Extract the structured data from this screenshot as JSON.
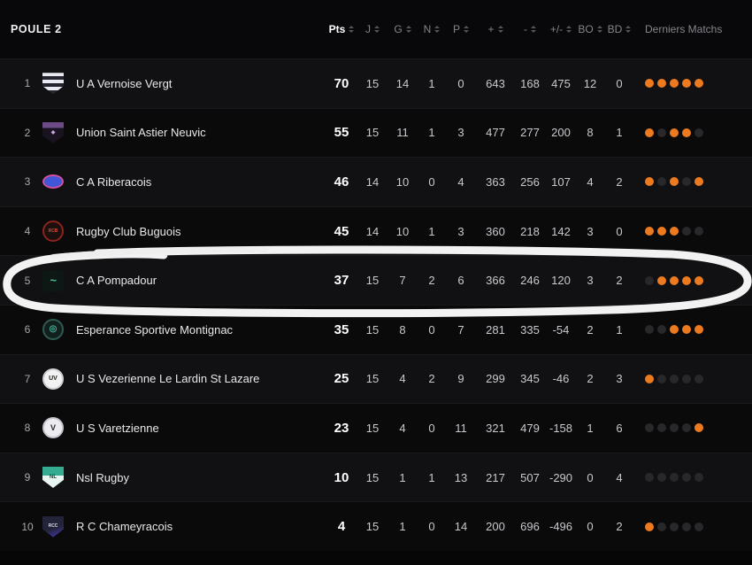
{
  "header": {
    "title": "POULE 2",
    "columns": [
      {
        "label": "Pts",
        "sortable": true,
        "emph": true
      },
      {
        "label": "J",
        "sortable": true
      },
      {
        "label": "G",
        "sortable": true
      },
      {
        "label": "N",
        "sortable": true
      },
      {
        "label": "P",
        "sortable": true
      },
      {
        "label": "+",
        "sortable": true
      },
      {
        "label": "-",
        "sortable": true
      },
      {
        "label": "+/-",
        "sortable": true
      },
      {
        "label": "BO",
        "sortable": true
      },
      {
        "label": "BD",
        "sortable": true
      },
      {
        "label": "Derniers Matchs",
        "sortable": false
      }
    ]
  },
  "colors": {
    "win_dot": "#ed7a1f",
    "empty_dot": "#28282b",
    "annotation": "#f2f2f2"
  },
  "annotation": {
    "type": "hand-drawn-circle",
    "highlighted_rank": "5",
    "highlighted_team": "C A Pompadour"
  },
  "standings": {
    "rows": [
      {
        "rank": "1",
        "team": "U A Vernoise Vergt",
        "pts": "70",
        "j": "15",
        "g": "14",
        "n": "1",
        "p": "0",
        "plus": "643",
        "minus": "168",
        "diff": "475",
        "bo": "12",
        "bd": "0",
        "last_matches": [
          1,
          1,
          1,
          1,
          1
        ],
        "logo": {
          "shape": "shield",
          "bg": "repeating-linear-gradient(180deg,#e9e9f1 0 4px,#24242e 4px 8px)",
          "label": "",
          "labelColor": "",
          "labelSize": 6
        }
      },
      {
        "rank": "2",
        "team": "Union Saint Astier Neuvic",
        "pts": "55",
        "j": "15",
        "g": "11",
        "n": "1",
        "p": "3",
        "plus": "477",
        "minus": "277",
        "diff": "200",
        "bo": "8",
        "bd": "1",
        "last_matches": [
          1,
          0,
          1,
          1,
          0
        ],
        "logo": {
          "shape": "shield",
          "bg": "linear-gradient(180deg,#6b4a85 0 28%,#19121f 28%)",
          "label": "◆",
          "labelColor": "#c9a6dd",
          "labelSize": 6
        }
      },
      {
        "rank": "3",
        "team": "C A Riberacois",
        "pts": "46",
        "j": "14",
        "g": "10",
        "n": "0",
        "p": "4",
        "plus": "363",
        "minus": "256",
        "diff": "107",
        "bo": "4",
        "bd": "2",
        "last_matches": [
          1,
          0,
          1,
          0,
          1
        ],
        "logo": {
          "shape": "ellipse",
          "bg": "#4157d8",
          "border": "#cf4f9e",
          "label": "",
          "labelColor": "",
          "labelSize": 6
        }
      },
      {
        "rank": "4",
        "team": "Rugby Club Buguois",
        "pts": "45",
        "j": "14",
        "g": "10",
        "n": "1",
        "p": "3",
        "plus": "360",
        "minus": "218",
        "diff": "142",
        "bo": "3",
        "bd": "0",
        "last_matches": [
          1,
          1,
          1,
          0,
          0
        ],
        "logo": {
          "shape": "circle",
          "bg": "#1c100e",
          "border": "#8d231c",
          "label": "RCB",
          "labelColor": "#d14a39",
          "labelSize": 5
        }
      },
      {
        "rank": "5",
        "team": "C A Pompadour",
        "pts": "37",
        "j": "15",
        "g": "7",
        "n": "2",
        "p": "6",
        "plus": "366",
        "minus": "246",
        "diff": "120",
        "bo": "3",
        "bd": "2",
        "last_matches": [
          0,
          1,
          1,
          1,
          1
        ],
        "logo": {
          "shape": "square",
          "bg": "#0d1713",
          "label": "~",
          "labelColor": "#45bfa1",
          "labelSize": 13,
          "italic": true
        }
      },
      {
        "rank": "6",
        "team": "Esperance Sportive Montignac",
        "pts": "35",
        "j": "15",
        "g": "8",
        "n": "0",
        "p": "7",
        "plus": "281",
        "minus": "335",
        "diff": "-54",
        "bo": "2",
        "bd": "1",
        "last_matches": [
          0,
          0,
          1,
          1,
          1
        ],
        "logo": {
          "shape": "circle",
          "bg": "#11201d",
          "border": "#2e5a52",
          "label": "◎",
          "labelColor": "#3fb3a0",
          "labelSize": 10
        }
      },
      {
        "rank": "7",
        "team": "U S Vezerienne Le Lardin St Lazare",
        "pts": "25",
        "j": "15",
        "g": "4",
        "n": "2",
        "p": "9",
        "plus": "299",
        "minus": "345",
        "diff": "-46",
        "bo": "2",
        "bd": "3",
        "last_matches": [
          1,
          0,
          0,
          0,
          0
        ],
        "logo": {
          "shape": "circle",
          "bg": "#f2f2f2",
          "border": "#cfcfd6",
          "label": "UV",
          "labelColor": "#1a1a1a",
          "labelSize": 7
        }
      },
      {
        "rank": "8",
        "team": "U S Varetzienne",
        "pts": "23",
        "j": "15",
        "g": "4",
        "n": "0",
        "p": "11",
        "plus": "321",
        "minus": "479",
        "diff": "-158",
        "bo": "1",
        "bd": "6",
        "last_matches": [
          0,
          0,
          0,
          0,
          1
        ],
        "logo": {
          "shape": "circle",
          "bg": "#ececf0",
          "border": "#c4c4cc",
          "label": "V",
          "labelColor": "#26262c",
          "labelSize": 9
        }
      },
      {
        "rank": "9",
        "team": "Nsl Rugby",
        "pts": "10",
        "j": "15",
        "g": "1",
        "n": "1",
        "p": "13",
        "plus": "217",
        "minus": "507",
        "diff": "-290",
        "bo": "0",
        "bd": "4",
        "last_matches": [
          0,
          0,
          0,
          0,
          0
        ],
        "logo": {
          "shape": "shield",
          "bg": "linear-gradient(180deg,#35ab92 0 42%,#e9f5f1 42%)",
          "label": "NL",
          "labelColor": "#0e3b33",
          "labelSize": 6
        }
      },
      {
        "rank": "10",
        "team": "R C Chameyracois",
        "pts": "4",
        "j": "15",
        "g": "1",
        "n": "0",
        "p": "14",
        "plus": "200",
        "minus": "696",
        "diff": "-496",
        "bo": "0",
        "bd": "2",
        "last_matches": [
          1,
          0,
          0,
          0,
          0
        ],
        "logo": {
          "shape": "shield",
          "bg": "linear-gradient(160deg,#23233a 0 55%,#4a3cc0 100%)",
          "label": "RCC",
          "labelColor": "#dcdce8",
          "labelSize": 5
        }
      }
    ]
  }
}
